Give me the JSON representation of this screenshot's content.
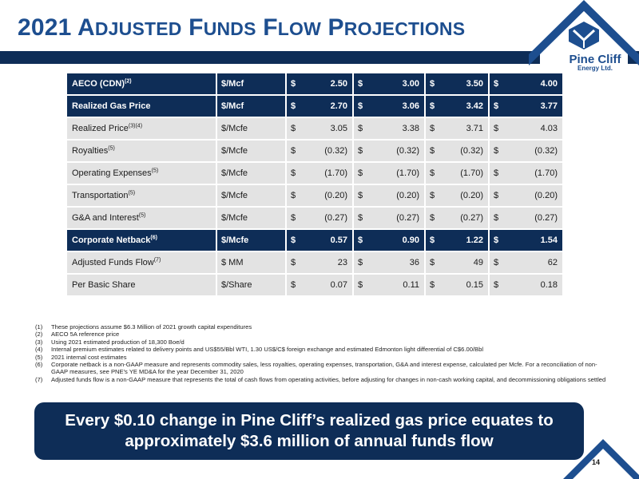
{
  "title": {
    "num": "2021",
    "p1_big": "A",
    "p1_sc": "DJUSTED",
    "p2_big": "F",
    "p2_sc": "UNDS",
    "p3_big": "F",
    "p3_sc": "LOW",
    "p4_big": "P",
    "p4_sc": "ROJECTIONS"
  },
  "logo": {
    "name": "Pine Cliff",
    "sub": "Energy Ltd."
  },
  "table": {
    "rows": [
      {
        "label": "AECO (CDN)",
        "sup": "(2)",
        "unit": "$/Mcf",
        "cur": "$",
        "values": [
          "2.50",
          "3.00",
          "3.50",
          "4.00"
        ]
      },
      {
        "label": "Realized Gas Price",
        "sup": "",
        "unit": "$/Mcf",
        "cur": "$",
        "values": [
          "2.70",
          "3.06",
          "3.42",
          "3.77"
        ]
      },
      {
        "label": "Realized Price",
        "sup": "(3)(4)",
        "unit": "$/Mcfe",
        "cur": "$",
        "values": [
          "3.05",
          "3.38",
          "3.71",
          "4.03"
        ]
      },
      {
        "label": "Royalties",
        "sup": "(5)",
        "unit": "$/Mcfe",
        "cur": "$",
        "values": [
          "(0.32)",
          "(0.32)",
          "(0.32)",
          "(0.32)"
        ]
      },
      {
        "label": "Operating Expenses",
        "sup": "(5)",
        "unit": "$/Mcfe",
        "cur": "$",
        "values": [
          "(1.70)",
          "(1.70)",
          "(1.70)",
          "(1.70)"
        ]
      },
      {
        "label": "Transportation",
        "sup": "(5)",
        "unit": "$/Mcfe",
        "cur": "$",
        "values": [
          "(0.20)",
          "(0.20)",
          "(0.20)",
          "(0.20)"
        ]
      },
      {
        "label": "G&A and Interest",
        "sup": "(5)",
        "unit": "$/Mcfe",
        "cur": "$",
        "values": [
          "(0.27)",
          "(0.27)",
          "(0.27)",
          "(0.27)"
        ]
      },
      {
        "label": "Corporate Netback",
        "sup": "(6)",
        "unit": "$/Mcfe",
        "cur": "$",
        "values": [
          "0.57",
          "0.90",
          "1.22",
          "1.54"
        ]
      },
      {
        "label": "Adjusted Funds Flow",
        "sup": "(7)",
        "unit": "$ MM",
        "cur": "$",
        "values": [
          "23",
          "36",
          "49",
          "62"
        ]
      },
      {
        "label": "Per Basic Share",
        "sup": "",
        "unit": "$/Share",
        "cur": "$",
        "values": [
          "0.07",
          "0.11",
          "0.15",
          "0.18"
        ]
      }
    ]
  },
  "notes": [
    {
      "num": "(1)",
      "text": "These projections assume $6.3 Million of 2021 growth capital expenditures"
    },
    {
      "num": "(2)",
      "text": "AECO 5A reference price"
    },
    {
      "num": "(3)",
      "text": "Using 2021 estimated production of 18,300 Boe/d"
    },
    {
      "num": "(4)",
      "text": "Internal premium estimates related to delivery points and US$55/Bbl WTI, 1.30 US$/C$ foreign exchange and estimated Edmonton light differential of C$6.00/Bbl"
    },
    {
      "num": "(5)",
      "text": "2021 internal cost estimates"
    },
    {
      "num": "(6)",
      "text": "Corporate netback is a non-GAAP measure and represents commodity sales, less royalties, operating expenses, transportation, G&A and interest expense, calculated per Mcfe.  For a reconciliation of non-GAAP measures, see PNE's YE MD&A for the year December 31, 2020"
    },
    {
      "num": "(7)",
      "text": "Adjusted funds flow is a non-GAAP measure that represents the total of cash flows from operating activities, before adjusting for changes in non-cash working capital, and decommissioning obligations settled"
    }
  ],
  "callout": {
    "line1": "Every $0.10 change in Pine Cliff’s realized gas price equates to",
    "line2": "approximately $3.6 million of annual funds flow"
  },
  "page_number": "14",
  "colors": {
    "navy": "#0e2d57",
    "title_blue": "#1d4e8f",
    "row_gray": "#e3e3e3"
  }
}
